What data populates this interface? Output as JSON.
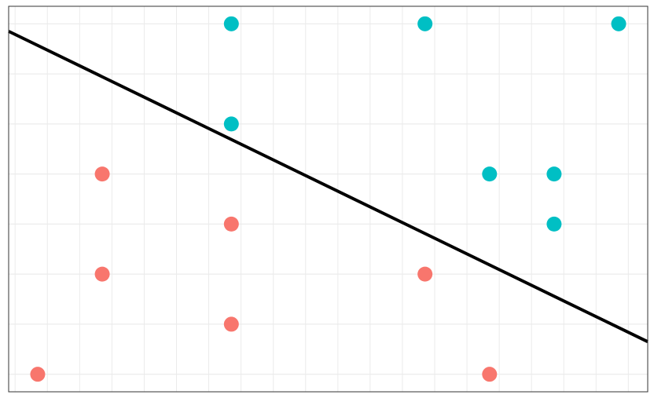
{
  "chart_data": {
    "type": "scatter",
    "title": "",
    "xlabel": "",
    "ylabel": "",
    "xlim": [
      -0.1,
      9.8
    ],
    "ylim": [
      -0.35,
      7.35
    ],
    "grid": true,
    "legend": "none",
    "series": [
      {
        "color": "#F8766D",
        "x": [
          0.35,
          1.35,
          1.35,
          3.35,
          3.35,
          6.35,
          7.35
        ],
        "y": [
          0,
          2,
          4,
          1,
          3,
          2,
          0
        ]
      },
      {
        "color": "#00BFC4",
        "x": [
          3.35,
          3.35,
          6.35,
          7.35,
          8.35,
          8.35,
          9.35
        ],
        "y": [
          5,
          7,
          7,
          4,
          4,
          3,
          7
        ]
      }
    ],
    "line": {
      "color": "#000000",
      "x": [
        -0.1,
        9.8
      ],
      "y": [
        6.85,
        0.65
      ]
    }
  }
}
